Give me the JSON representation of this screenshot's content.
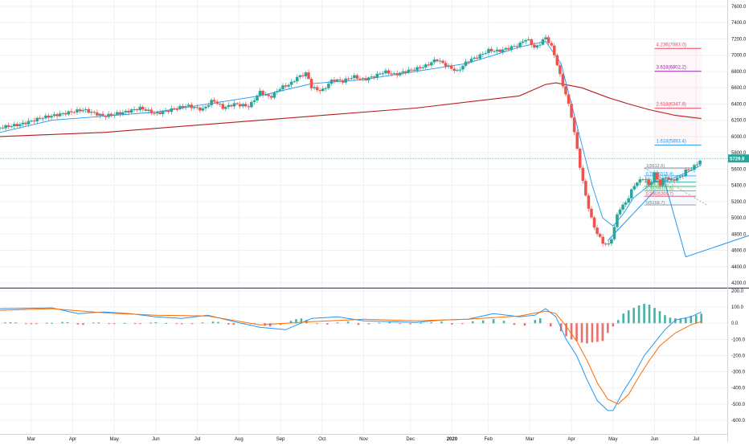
{
  "chart_data": [
    {
      "panel": "price",
      "type": "candlestick",
      "title": "",
      "ylim": [
        4200,
        7600
      ],
      "y_ticks": [
        "7600.0",
        "7400.0",
        "7200.0",
        "7000.0",
        "6800.0",
        "6600.0",
        "6400.0",
        "6200.0",
        "6000.0",
        "5800.0",
        "5600.0",
        "5400.0",
        "5200.0",
        "5000.0",
        "4800.0",
        "4600.0",
        "4400.0",
        "4200.0"
      ],
      "last_price_label": "5729.9",
      "last_price_value": 5729.9,
      "x_labels": [
        "Mar",
        "Apr",
        "May",
        "Jun",
        "Jul",
        "Aug",
        "Sep",
        "Oct",
        "Nov",
        "Dec",
        "2020",
        "Feb",
        "Mar",
        "Apr",
        "May",
        "Jun",
        "Jul"
      ],
      "close_path": [
        [
          0,
          6110
        ],
        [
          4,
          6150
        ],
        [
          8,
          6230
        ],
        [
          12,
          6280
        ],
        [
          16,
          6330
        ],
        [
          20,
          6250
        ],
        [
          24,
          6300
        ],
        [
          27,
          6350
        ],
        [
          30,
          6280
        ],
        [
          33,
          6330
        ],
        [
          36,
          6380
        ],
        [
          39,
          6330
        ],
        [
          41,
          6450
        ],
        [
          43,
          6350
        ],
        [
          45,
          6400
        ],
        [
          48,
          6370
        ],
        [
          50,
          6550
        ],
        [
          52,
          6480
        ],
        [
          54,
          6600
        ],
        [
          56,
          6650
        ],
        [
          57,
          6720
        ],
        [
          59,
          6780
        ],
        [
          60,
          6600
        ],
        [
          62,
          6560
        ],
        [
          64,
          6700
        ],
        [
          66,
          6680
        ],
        [
          68,
          6740
        ],
        [
          70,
          6700
        ],
        [
          72,
          6740
        ],
        [
          74,
          6800
        ],
        [
          76,
          6760
        ],
        [
          78,
          6800
        ],
        [
          80,
          6830
        ],
        [
          82,
          6870
        ],
        [
          84,
          6950
        ],
        [
          86,
          6870
        ],
        [
          88,
          6800
        ],
        [
          90,
          6930
        ],
        [
          92,
          6980
        ],
        [
          94,
          7060
        ],
        [
          96,
          7050
        ],
        [
          98,
          7090
        ],
        [
          100,
          7130
        ],
        [
          101,
          7200
        ],
        [
          102,
          7170
        ],
        [
          103,
          7080
        ],
        [
          104,
          7150
        ],
        [
          105,
          7220
        ],
        [
          106,
          7130
        ],
        [
          107,
          6950
        ],
        [
          108,
          6700
        ],
        [
          109,
          6500
        ],
        [
          110,
          6250
        ],
        [
          111,
          5880
        ],
        [
          112,
          5500
        ],
        [
          113,
          5200
        ],
        [
          114,
          4950
        ],
        [
          115,
          4800
        ],
        [
          116,
          4700
        ],
        [
          117,
          4650
        ],
        [
          118,
          4800
        ],
        [
          119,
          5100
        ],
        [
          120,
          5150
        ],
        [
          121,
          5250
        ],
        [
          122,
          5400
        ],
        [
          123,
          5450
        ],
        [
          124,
          5500
        ],
        [
          125,
          5380
        ],
        [
          126,
          5550
        ],
        [
          127,
          5400
        ],
        [
          128,
          5520
        ],
        [
          129,
          5450
        ],
        [
          130,
          5480
        ],
        [
          131,
          5500
        ],
        [
          132,
          5580
        ],
        [
          133,
          5600
        ],
        [
          134,
          5650
        ],
        [
          135,
          5729.9
        ]
      ],
      "ma_path": [
        [
          0,
          6000
        ],
        [
          20,
          6050
        ],
        [
          40,
          6150
        ],
        [
          60,
          6250
        ],
        [
          80,
          6350
        ],
        [
          100,
          6500
        ],
        [
          105,
          6640
        ],
        [
          107,
          6660
        ],
        [
          112,
          6600
        ],
        [
          117,
          6480
        ],
        [
          121,
          6400
        ],
        [
          125,
          6330
        ],
        [
          130,
          6260
        ],
        [
          135,
          6220
        ]
      ],
      "bb_path": [
        [
          0,
          6050
        ],
        [
          10,
          6200
        ],
        [
          20,
          6250
        ],
        [
          30,
          6300
        ],
        [
          40,
          6400
        ],
        [
          50,
          6500
        ],
        [
          60,
          6650
        ],
        [
          70,
          6700
        ],
        [
          80,
          6800
        ],
        [
          90,
          6900
        ],
        [
          100,
          7100
        ],
        [
          105,
          7170
        ],
        [
          108,
          6900
        ],
        [
          110,
          6400
        ],
        [
          112,
          5900
        ],
        [
          114,
          5400
        ],
        [
          116,
          5000
        ],
        [
          118,
          4900
        ],
        [
          120,
          5050
        ],
        [
          122,
          5250
        ],
        [
          124,
          5350
        ],
        [
          126,
          5450
        ],
        [
          128,
          5450
        ],
        [
          130,
          5500
        ],
        [
          133,
          5580
        ],
        [
          135,
          5650
        ]
      ],
      "fib_extension": [
        {
          "label": "4.236(7083.0)",
          "value": 7083,
          "color": "#e8475f"
        },
        {
          "label": "3.618(6802.2)",
          "value": 6802.2,
          "color": "#9c27b0"
        },
        {
          "label": "2.618(6347.8)",
          "value": 6347.8,
          "color": "#e8475f"
        },
        {
          "label": "1.618(5893.4)",
          "value": 5893.4,
          "color": "#2196f3"
        }
      ],
      "fib_retracement": [
        {
          "label": "1(5612.6)",
          "value": 5612.6,
          "color": "#787b86"
        },
        {
          "label": "0.786(5515.4)",
          "value": 5515.4,
          "color": "#2196f3"
        },
        {
          "label": "0.618(5439.1)",
          "value": 5439.1,
          "color": "#26a69a"
        },
        {
          "label": "0.5(5385.5)",
          "value": 5385.5,
          "color": "#4caf50"
        },
        {
          "label": "0.382(5331.9)",
          "value": 5331.9,
          "color": "#4caf50"
        },
        {
          "label": "0.236(5265.7)",
          "value": 5265.7,
          "color": "#e8475f"
        },
        {
          "label": "0(5158.7)",
          "value": 5158.7,
          "color": "#787b86"
        }
      ],
      "projection_path": [
        [
          128,
          5430
        ],
        [
          132,
          4520
        ],
        [
          145,
          4800
        ]
      ],
      "support_line": [
        [
          117,
          4720
        ],
        [
          126,
          5330
        ]
      ]
    },
    {
      "panel": "macd",
      "type": "line+bar",
      "ylim": [
        -650,
        200
      ],
      "y_ticks": [
        "200.0",
        "100.0",
        "0.0",
        "-100.0",
        "-200.0",
        "-300.0",
        "-400.0",
        "-500.0",
        "-600.0"
      ],
      "macd_path": [
        [
          0,
          90
        ],
        [
          10,
          95
        ],
        [
          15,
          60
        ],
        [
          20,
          70
        ],
        [
          25,
          60
        ],
        [
          30,
          40
        ],
        [
          35,
          30
        ],
        [
          40,
          50
        ],
        [
          45,
          10
        ],
        [
          50,
          -25
        ],
        [
          55,
          -40
        ],
        [
          60,
          30
        ],
        [
          65,
          40
        ],
        [
          70,
          15
        ],
        [
          75,
          10
        ],
        [
          80,
          5
        ],
        [
          85,
          20
        ],
        [
          90,
          25
        ],
        [
          95,
          60
        ],
        [
          100,
          40
        ],
        [
          103,
          50
        ],
        [
          105,
          90
        ],
        [
          107,
          40
        ],
        [
          109,
          -100
        ],
        [
          111,
          -200
        ],
        [
          113,
          -350
        ],
        [
          115,
          -480
        ],
        [
          117,
          -540
        ],
        [
          118,
          -540
        ],
        [
          120,
          -420
        ],
        [
          122,
          -320
        ],
        [
          124,
          -200
        ],
        [
          126,
          -120
        ],
        [
          128,
          -40
        ],
        [
          130,
          20
        ],
        [
          133,
          40
        ],
        [
          135,
          70
        ]
      ],
      "signal_path": [
        [
          0,
          80
        ],
        [
          10,
          90
        ],
        [
          20,
          65
        ],
        [
          30,
          50
        ],
        [
          40,
          45
        ],
        [
          50,
          -10
        ],
        [
          60,
          10
        ],
        [
          70,
          25
        ],
        [
          80,
          15
        ],
        [
          90,
          25
        ],
        [
          100,
          45
        ],
        [
          105,
          75
        ],
        [
          107,
          60
        ],
        [
          109,
          -20
        ],
        [
          111,
          -110
        ],
        [
          113,
          -230
        ],
        [
          115,
          -370
        ],
        [
          117,
          -470
        ],
        [
          119,
          -500
        ],
        [
          121,
          -440
        ],
        [
          123,
          -330
        ],
        [
          125,
          -230
        ],
        [
          127,
          -140
        ],
        [
          130,
          -60
        ],
        [
          133,
          -10
        ],
        [
          135,
          10
        ]
      ],
      "histogram": [
        [
          1,
          5
        ],
        [
          2,
          6
        ],
        [
          3,
          5
        ],
        [
          5,
          -5
        ],
        [
          6,
          -6
        ],
        [
          7,
          -4
        ],
        [
          9,
          3
        ],
        [
          10,
          2
        ],
        [
          12,
          8
        ],
        [
          13,
          6
        ],
        [
          15,
          -8
        ],
        [
          16,
          -10
        ],
        [
          18,
          4
        ],
        [
          19,
          5
        ],
        [
          21,
          -3
        ],
        [
          22,
          -4
        ],
        [
          24,
          2
        ],
        [
          26,
          -5
        ],
        [
          27,
          -3
        ],
        [
          29,
          4
        ],
        [
          30,
          6
        ],
        [
          32,
          2
        ],
        [
          34,
          -4
        ],
        [
          35,
          -6
        ],
        [
          37,
          -3
        ],
        [
          39,
          5
        ],
        [
          41,
          10
        ],
        [
          42,
          8
        ],
        [
          44,
          -8
        ],
        [
          45,
          -10
        ],
        [
          47,
          -6
        ],
        [
          49,
          -4
        ],
        [
          51,
          -15
        ],
        [
          52,
          -20
        ],
        [
          54,
          -10
        ],
        [
          56,
          15
        ],
        [
          57,
          25
        ],
        [
          58,
          30
        ],
        [
          59,
          20
        ],
        [
          61,
          -5
        ],
        [
          63,
          -8
        ],
        [
          65,
          5
        ],
        [
          67,
          10
        ],
        [
          69,
          -10
        ],
        [
          71,
          -6
        ],
        [
          73,
          4
        ],
        [
          75,
          8
        ],
        [
          77,
          -4
        ],
        [
          79,
          -6
        ],
        [
          81,
          3
        ],
        [
          83,
          6
        ],
        [
          85,
          10
        ],
        [
          87,
          -8
        ],
        [
          89,
          -4
        ],
        [
          91,
          12
        ],
        [
          93,
          18
        ],
        [
          95,
          25
        ],
        [
          97,
          15
        ],
        [
          99,
          -10
        ],
        [
          101,
          -15
        ],
        [
          103,
          20
        ],
        [
          104,
          30
        ],
        [
          106,
          -20
        ],
        [
          108,
          -50
        ],
        [
          109,
          -80
        ],
        [
          110,
          -100
        ],
        [
          111,
          -110
        ],
        [
          112,
          -120
        ],
        [
          113,
          -125
        ],
        [
          114,
          -118
        ],
        [
          115,
          -115
        ],
        [
          116,
          -110
        ],
        [
          117,
          -60
        ],
        [
          118,
          -20
        ],
        [
          119,
          20
        ],
        [
          120,
          60
        ],
        [
          121,
          80
        ],
        [
          122,
          95
        ],
        [
          123,
          110
        ],
        [
          124,
          120
        ],
        [
          125,
          115
        ],
        [
          126,
          95
        ],
        [
          127,
          75
        ],
        [
          128,
          50
        ],
        [
          129,
          35
        ],
        [
          130,
          30
        ],
        [
          131,
          30
        ],
        [
          132,
          35
        ],
        [
          133,
          45
        ],
        [
          134,
          50
        ],
        [
          135,
          60
        ]
      ]
    }
  ]
}
